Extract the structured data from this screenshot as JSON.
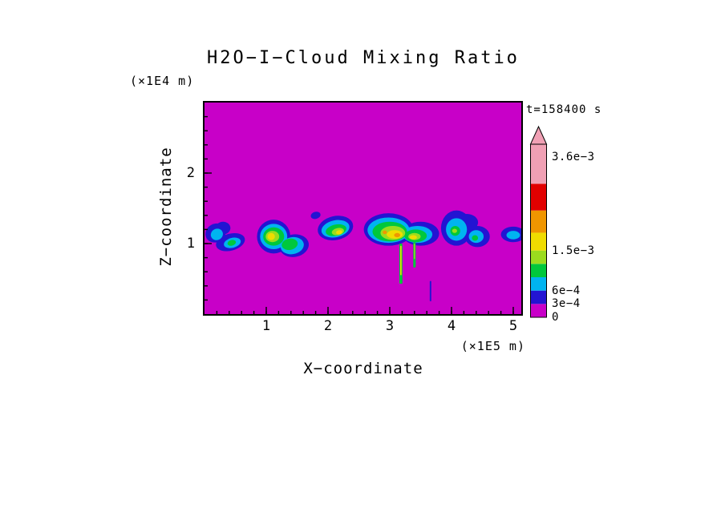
{
  "title": "H2O−I−Cloud Mixing Ratio",
  "annotations": {
    "time_label": "t=158400 s"
  },
  "axes": {
    "x_label": "X−coordinate",
    "z_label": "Z−coordinate",
    "x_unit": "(×1E5 m)",
    "z_unit": "(×1E4 m)",
    "x_major_ticks": [
      1,
      2,
      3,
      4,
      5
    ],
    "z_major_ticks": [
      1,
      2
    ],
    "x_minor_step": 0.2,
    "z_minor_step": 0.2,
    "x_max": 5.13,
    "z_max": 3.0
  },
  "colorbar": {
    "max_value": 0.0036,
    "labels": [
      {
        "text": "3.6e−3",
        "value": 0.0036
      },
      {
        "text": "1.5e−3",
        "value": 0.0015
      },
      {
        "text": "6e−4",
        "value": 0.0006
      },
      {
        "text": "3e−4",
        "value": 0.0003
      },
      {
        "text": "0",
        "value": 0
      }
    ]
  },
  "chart_data": {
    "type": "heatmap",
    "title": "H2O−I−Cloud Mixing Ratio",
    "xlabel": "X−coordinate (×1E5 m)",
    "ylabel": "Z−coordinate (×1E4 m)",
    "time_label": "t=158400 s",
    "xlim": [
      0,
      5.13
    ],
    "ylim": [
      0,
      3.0
    ],
    "background_value": 0,
    "legend_position": "right",
    "grid": false,
    "levels": [
      {
        "min": 0,
        "color": "#C800C8"
      },
      {
        "min": 0.0003,
        "color": "#2314D2"
      },
      {
        "min": 0.0006,
        "color": "#00B4F0"
      },
      {
        "min": 0.0009,
        "color": "#00C83C"
      },
      {
        "min": 0.0012,
        "color": "#9BDC1E"
      },
      {
        "min": 0.0015,
        "color": "#F0DC00"
      },
      {
        "min": 0.0019,
        "color": "#F09600"
      },
      {
        "min": 0.0024,
        "color": "#E10000"
      },
      {
        "min": 0.003,
        "color": "#F0A0B4"
      }
    ],
    "clouds": [
      {
        "layers": [
          {
            "level": 1,
            "ellipses": [
              [
                0.18,
                1.15,
                0.17,
                0.13,
                -30
              ],
              [
                0.42,
                1.02,
                0.24,
                0.12,
                -15
              ],
              [
                0.3,
                1.22,
                0.12,
                0.09,
                0
              ]
            ]
          },
          {
            "level": 2,
            "ellipses": [
              [
                0.2,
                1.13,
                0.1,
                0.08,
                -30
              ],
              [
                0.45,
                1.01,
                0.14,
                0.07,
                -15
              ]
            ]
          },
          {
            "level": 3,
            "ellipses": [
              [
                0.44,
                1.01,
                0.07,
                0.04,
                -15
              ]
            ]
          }
        ]
      },
      {
        "layers": [
          {
            "level": 1,
            "ellipses": [
              [
                1.12,
                1.1,
                0.27,
                0.24,
                0
              ],
              [
                1.45,
                0.97,
                0.24,
                0.16,
                -10
              ]
            ]
          },
          {
            "level": 2,
            "ellipses": [
              [
                1.12,
                1.1,
                0.22,
                0.18,
                0
              ],
              [
                1.42,
                0.97,
                0.19,
                0.12,
                -10
              ]
            ]
          },
          {
            "level": 3,
            "ellipses": [
              [
                1.12,
                1.1,
                0.17,
                0.13,
                0
              ],
              [
                1.38,
                0.99,
                0.13,
                0.08,
                -10
              ]
            ]
          },
          {
            "level": 4,
            "ellipses": [
              [
                1.1,
                1.1,
                0.11,
                0.08,
                0
              ]
            ]
          },
          {
            "level": 5,
            "ellipses": [
              [
                1.08,
                1.1,
                0.06,
                0.05,
                0
              ]
            ]
          }
        ]
      },
      {
        "layers": [
          {
            "level": 1,
            "ellipses": [
              [
                2.12,
                1.22,
                0.29,
                0.17,
                -12
              ],
              [
                1.8,
                1.4,
                0.08,
                0.05,
                -15
              ]
            ]
          },
          {
            "level": 2,
            "ellipses": [
              [
                2.12,
                1.21,
                0.23,
                0.12,
                -12
              ]
            ]
          },
          {
            "level": 3,
            "ellipses": [
              [
                2.13,
                1.19,
                0.17,
                0.08,
                -12
              ]
            ]
          },
          {
            "level": 4,
            "ellipses": [
              [
                2.16,
                1.17,
                0.1,
                0.05,
                -12
              ]
            ]
          },
          {
            "level": 5,
            "ellipses": [
              [
                2.18,
                1.16,
                0.05,
                0.03,
                -12
              ]
            ]
          }
        ]
      },
      {
        "layers": [
          {
            "level": 1,
            "ellipses": [
              [
                2.98,
                1.2,
                0.4,
                0.23,
                0
              ],
              [
                3.5,
                1.14,
                0.3,
                0.17,
                0
              ]
            ]
          },
          {
            "level": 2,
            "ellipses": [
              [
                2.98,
                1.19,
                0.34,
                0.18,
                0
              ],
              [
                3.45,
                1.13,
                0.24,
                0.12,
                0
              ]
            ]
          },
          {
            "level": 3,
            "ellipses": [
              [
                3.0,
                1.17,
                0.28,
                0.14,
                0
              ],
              [
                3.42,
                1.11,
                0.18,
                0.09,
                0
              ]
            ]
          },
          {
            "level": 4,
            "ellipses": [
              [
                3.05,
                1.15,
                0.2,
                0.1,
                0
              ],
              [
                3.4,
                1.1,
                0.1,
                0.05,
                0
              ]
            ]
          },
          {
            "level": 5,
            "ellipses": [
              [
                3.08,
                1.13,
                0.13,
                0.06,
                0
              ],
              [
                3.38,
                1.09,
                0.06,
                0.03,
                0
              ]
            ]
          },
          {
            "level": 6,
            "ellipses": [
              [
                3.12,
                1.12,
                0.05,
                0.03,
                0
              ],
              [
                2.92,
                1.16,
                0.035,
                0.025,
                0
              ]
            ]
          }
        ]
      },
      {
        "layers": [
          {
            "level": 1,
            "ellipses": [
              [
                4.08,
                1.22,
                0.25,
                0.25,
                0
              ],
              [
                4.42,
                1.1,
                0.2,
                0.15,
                0
              ],
              [
                4.25,
                1.3,
                0.18,
                0.12,
                0
              ]
            ]
          },
          {
            "level": 2,
            "ellipses": [
              [
                4.08,
                1.2,
                0.17,
                0.16,
                0
              ],
              [
                4.4,
                1.1,
                0.12,
                0.09,
                0
              ]
            ]
          },
          {
            "level": 3,
            "ellipses": [
              [
                4.06,
                1.18,
                0.08,
                0.07,
                0
              ],
              [
                4.38,
                1.08,
                0.05,
                0.04,
                0
              ]
            ]
          },
          {
            "level": 4,
            "ellipses": [
              [
                4.05,
                1.18,
                0.04,
                0.03,
                0
              ]
            ]
          }
        ]
      },
      {
        "layers": [
          {
            "level": 1,
            "ellipses": [
              [
                5.0,
                1.13,
                0.2,
                0.11,
                0
              ]
            ]
          },
          {
            "level": 2,
            "ellipses": [
              [
                5.0,
                1.12,
                0.11,
                0.06,
                0
              ]
            ]
          }
        ]
      }
    ],
    "streaks": [
      {
        "x": 3.18,
        "z_top": 1.0,
        "z_bottom": 0.43,
        "width": 0.05,
        "level": 3
      },
      {
        "x": 3.18,
        "z_top": 0.97,
        "z_bottom": 0.55,
        "width": 0.022,
        "level": 5
      },
      {
        "x": 3.4,
        "z_top": 1.02,
        "z_bottom": 0.66,
        "width": 0.04,
        "level": 3
      },
      {
        "x": 3.4,
        "z_top": 1.0,
        "z_bottom": 0.78,
        "width": 0.018,
        "level": 4
      },
      {
        "x": 3.66,
        "z_top": 0.47,
        "z_bottom": 0.18,
        "width": 0.025,
        "level": 1
      }
    ]
  }
}
